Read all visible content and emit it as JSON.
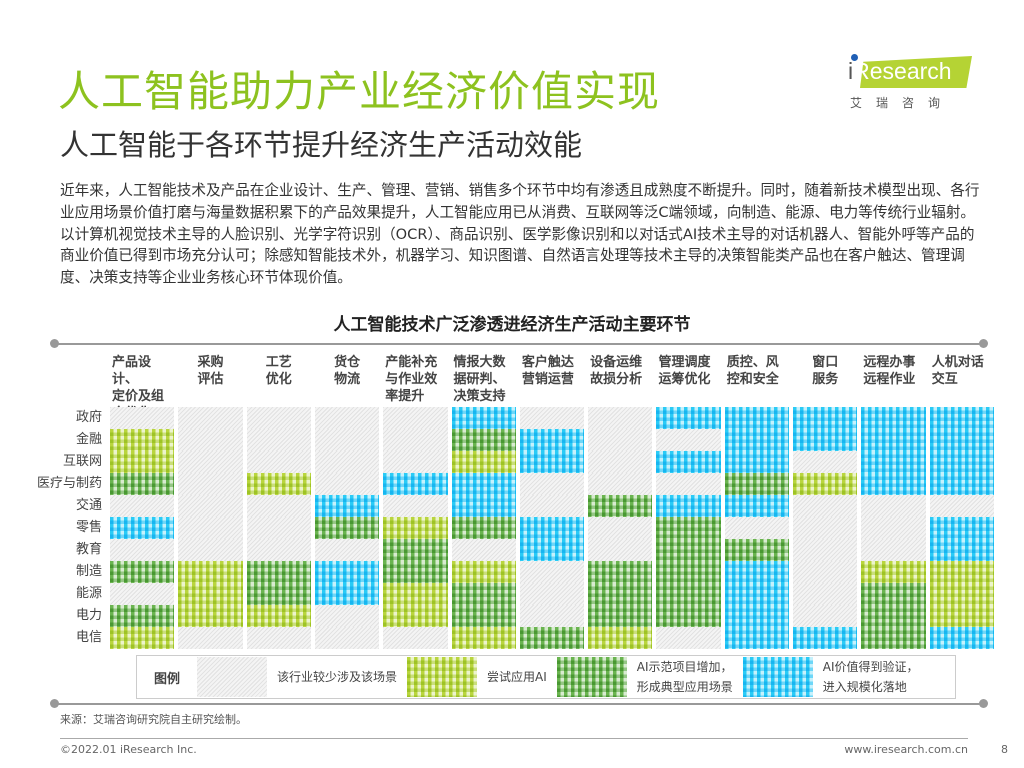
{
  "header": {
    "title": "人工智能助力产业经济价值实现",
    "subtitle": "人工智能于各环节提升经济生产活动效能",
    "logo_text": "iResearch",
    "logo_cn": "艾瑞咨询"
  },
  "body_text": "近年来，人工智能技术及产品在企业设计、生产、管理、营销、销售多个环节中均有渗透且成熟度不断提升。同时，随着新技术模型出现、各行业应用场景价值打磨与海量数据积累下的产品效果提升，人工智能应用已从消费、互联网等泛C端领域，向制造、能源、电力等传统行业辐射。以计算机视觉技术主导的人脸识别、光学字符识别（OCR）、商品识别、医学影像识别和以对话式AI技术主导的对话机器人、智能外呼等产品的商业价值已得到市场充分认可；除感知智能技术外，机器学习、知识图谱、自然语言处理等技术主导的决策智能类产品也在客户触达、管理调度、决策支持等企业业务核心环节体现价值。",
  "chart_data": {
    "type": "heatmap",
    "title": "人工智能技术广泛渗透进经济生产活动主要环节",
    "columns": [
      "产品设计、定价及组合优化",
      "采购评估",
      "工艺优化",
      "货仓物流",
      "产能补充与作业效率提升",
      "情报大数据研判、决策支持",
      "客户触达营销运营",
      "设备运维故损分析",
      "管理调度运筹优化",
      "质控、风控和安全",
      "窗口服务",
      "远程办事远程作业",
      "人机对话交互"
    ],
    "rows": [
      "政府",
      "金融",
      "互联网",
      "医疗与制药",
      "交通",
      "零售",
      "教育",
      "制造",
      "能源",
      "电力",
      "电信"
    ],
    "levels": [
      "该行业较少涉及该场景",
      "尝试应用AI",
      "AI示范项目增加，形成典型应用场景",
      "AI价值得到验证，进入规模化落地"
    ],
    "level_colors": [
      "#e6e6e6",
      "#b5d334",
      "#62b046",
      "#1ec8f5"
    ],
    "values": [
      [
        0,
        0,
        0,
        0,
        0,
        3,
        0,
        0,
        3,
        3,
        3,
        3,
        3
      ],
      [
        1,
        0,
        0,
        0,
        0,
        2,
        3,
        0,
        0,
        3,
        3,
        3,
        3
      ],
      [
        1,
        0,
        0,
        0,
        0,
        1,
        3,
        0,
        3,
        3,
        0,
        3,
        3
      ],
      [
        2,
        0,
        1,
        0,
        3,
        3,
        0,
        0,
        0,
        2,
        1,
        3,
        3
      ],
      [
        0,
        0,
        0,
        3,
        0,
        3,
        0,
        2,
        3,
        3,
        0,
        0,
        0
      ],
      [
        3,
        0,
        0,
        2,
        1,
        2,
        3,
        0,
        2,
        0,
        0,
        0,
        3
      ],
      [
        0,
        0,
        0,
        0,
        2,
        0,
        3,
        0,
        2,
        2,
        0,
        0,
        3
      ],
      [
        2,
        1,
        2,
        3,
        2,
        1,
        0,
        2,
        2,
        3,
        0,
        1,
        1
      ],
      [
        0,
        1,
        2,
        3,
        1,
        2,
        0,
        2,
        2,
        3,
        0,
        2,
        1
      ],
      [
        2,
        1,
        1,
        0,
        1,
        2,
        0,
        2,
        2,
        3,
        0,
        2,
        1
      ],
      [
        1,
        0,
        0,
        0,
        0,
        1,
        2,
        1,
        0,
        3,
        3,
        2,
        3
      ]
    ]
  },
  "col_head_lines": [
    [
      "产品设计、",
      "定价及组",
      "合优化"
    ],
    [
      "采购",
      "评估"
    ],
    [
      "工艺",
      "优化"
    ],
    [
      "货仓",
      "物流"
    ],
    [
      "产能补充",
      "与作业效",
      "率提升"
    ],
    [
      "情报大数",
      "据研判、",
      "决策支持"
    ],
    [
      "客户触达",
      "营销运营"
    ],
    [
      "设备运维",
      "故损分析"
    ],
    [
      "管理调度",
      "运筹优化"
    ],
    [
      "质控、风",
      "控和安全"
    ],
    [
      "窗口",
      "服务"
    ],
    [
      "远程办事",
      "远程作业"
    ],
    [
      "人机对话",
      "交互"
    ]
  ],
  "legend": {
    "title": "图例",
    "items": [
      [
        "该行业较少涉及该场景"
      ],
      [
        "尝试应用AI"
      ],
      [
        "AI示范项目增加，",
        "形成典型应用场景"
      ],
      [
        "AI价值得到验证，",
        "进入规模化落地"
      ]
    ]
  },
  "footer": {
    "source": "来源：艾瑞咨询研究院自主研究绘制。",
    "copyright": "©2022.01 iResearch Inc.",
    "site": "www.iresearch.com.cn",
    "page": "8"
  }
}
